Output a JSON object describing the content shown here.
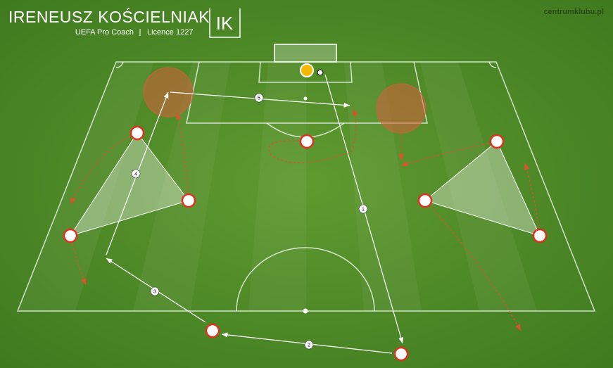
{
  "header": {
    "title": "IRENEUSZ KOŚCIELNIAK",
    "subtitle": [
      "UEFA Pro Coach",
      "Licence 1227"
    ],
    "logo": "IK"
  },
  "watermark": "centrumklubu.pl",
  "pass_labels": [
    "1",
    "2",
    "3",
    "4",
    "5"
  ]
}
